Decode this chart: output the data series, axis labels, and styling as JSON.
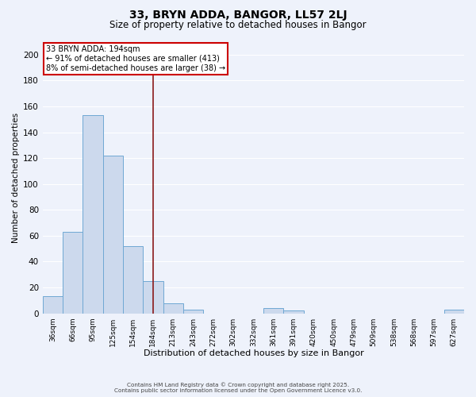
{
  "title": "33, BRYN ADDA, BANGOR, LL57 2LJ",
  "subtitle": "Size of property relative to detached houses in Bangor",
  "xlabel": "Distribution of detached houses by size in Bangor",
  "ylabel": "Number of detached properties",
  "bar_labels": [
    "36sqm",
    "66sqm",
    "95sqm",
    "125sqm",
    "154sqm",
    "184sqm",
    "213sqm",
    "243sqm",
    "272sqm",
    "302sqm",
    "332sqm",
    "361sqm",
    "391sqm",
    "420sqm",
    "450sqm",
    "479sqm",
    "509sqm",
    "538sqm",
    "568sqm",
    "597sqm",
    "627sqm"
  ],
  "bar_values": [
    13,
    63,
    153,
    122,
    52,
    25,
    8,
    3,
    0,
    0,
    0,
    4,
    2,
    0,
    0,
    0,
    0,
    0,
    0,
    0,
    3
  ],
  "bar_color": "#ccd9ed",
  "bar_edge_color": "#6fa8d4",
  "vline_x_index": 5,
  "vline_color": "#8b1a1a",
  "annotation_title": "33 BRYN ADDA: 194sqm",
  "annotation_line1": "← 91% of detached houses are smaller (413)",
  "annotation_line2": "8% of semi-detached houses are larger (38) →",
  "annotation_box_color": "white",
  "annotation_box_edge": "#cc0000",
  "ylim": [
    0,
    210
  ],
  "yticks": [
    0,
    20,
    40,
    60,
    80,
    100,
    120,
    140,
    160,
    180,
    200
  ],
  "footer_line1": "Contains HM Land Registry data © Crown copyright and database right 2025.",
  "footer_line2": "Contains public sector information licensed under the Open Government Licence v3.0.",
  "background_color": "#eef2fb",
  "grid_color": "#ffffff",
  "title_fontsize": 10,
  "subtitle_fontsize": 8.5
}
